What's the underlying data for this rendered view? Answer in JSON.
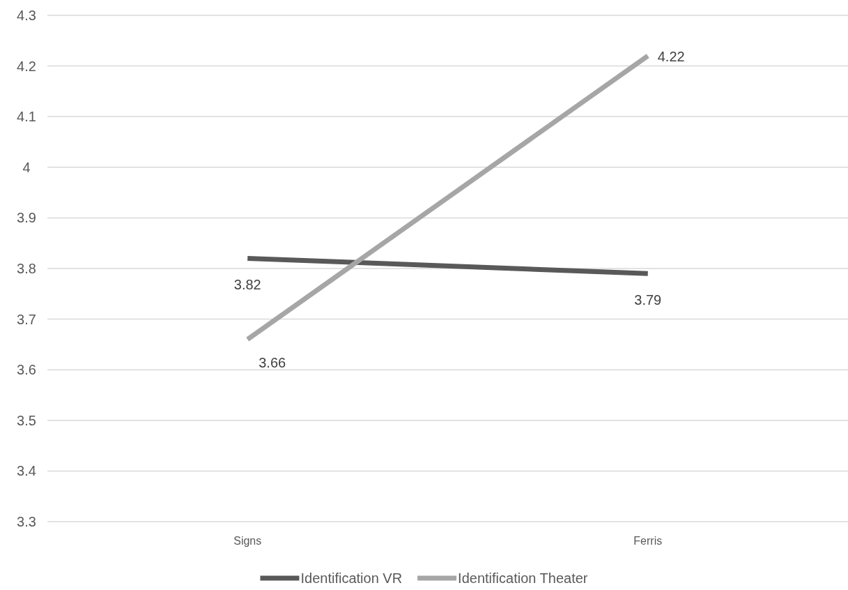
{
  "chart_data": {
    "type": "line",
    "categories": [
      "Signs",
      "Ferris"
    ],
    "series": [
      {
        "name": "Identification VR",
        "color": "#595959",
        "values": [
          3.82,
          3.79
        ]
      },
      {
        "name": "Identification Theater",
        "color": "#a6a6a6",
        "values": [
          3.66,
          4.22
        ]
      }
    ],
    "ylim": [
      3.3,
      4.3
    ],
    "yticks": [
      3.3,
      3.4,
      3.5,
      3.6,
      3.7,
      3.8,
      3.9,
      4,
      4.1,
      4.2,
      4.3
    ],
    "grid": "y",
    "legend": "bottom",
    "data_labels": true,
    "marker": "none",
    "line_style": "solid"
  }
}
